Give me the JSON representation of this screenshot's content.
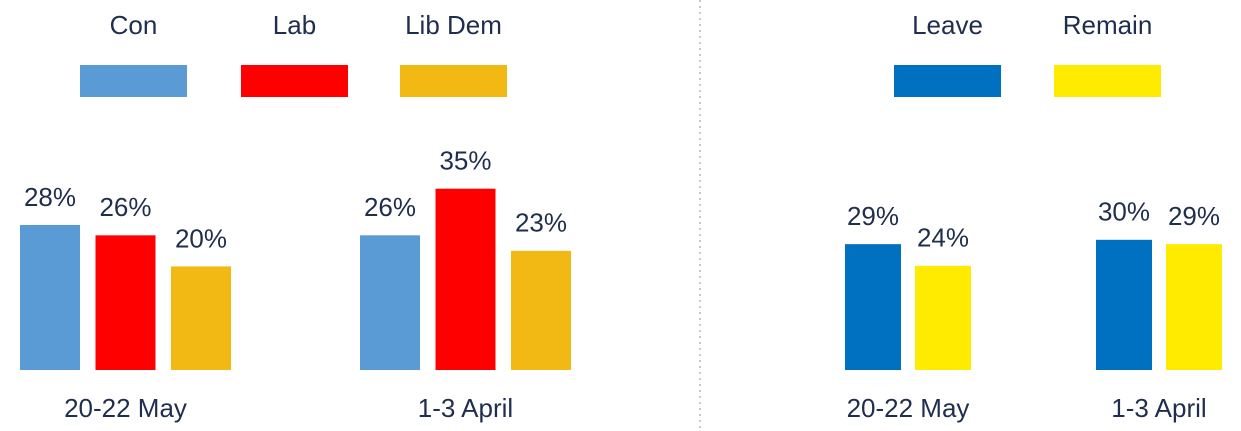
{
  "chart_data": [
    {
      "type": "bar",
      "categories": [
        "20-22 May",
        "1-3 April"
      ],
      "series": [
        {
          "name": "Con",
          "color": "#5b9bd5",
          "values": [
            28,
            26
          ],
          "value_labels": [
            "28%",
            "26%"
          ]
        },
        {
          "name": "Lab",
          "color": "#ff0000",
          "values": [
            26,
            35
          ],
          "value_labels": [
            "26%",
            "35%"
          ]
        },
        {
          "name": "Lib Dem",
          "color": "#f2b814",
          "values": [
            20,
            23
          ],
          "value_labels": [
            "20%",
            "23%"
          ]
        }
      ]
    },
    {
      "type": "bar",
      "categories": [
        "20-22 May",
        "1-3 April"
      ],
      "series": [
        {
          "name": "Leave",
          "color": "#0070c0",
          "values": [
            29,
            30
          ],
          "value_labels": [
            "29%",
            "30%"
          ]
        },
        {
          "name": "Remain",
          "color": "#ffeb00",
          "values": [
            24,
            29
          ],
          "value_labels": [
            "24%",
            "29%"
          ]
        }
      ]
    }
  ]
}
